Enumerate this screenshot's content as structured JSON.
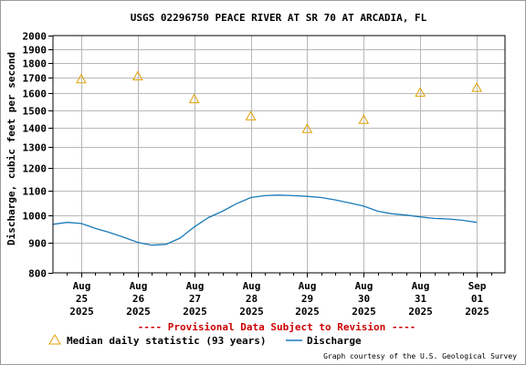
{
  "chart_data": {
    "type": "line",
    "title": "USGS 02296750 PEACE RIVER AT SR 70 AT ARCADIA, FL",
    "ylabel": "Discharge, cubic feet per second",
    "xlabel": "",
    "y_scale": "log",
    "ylim": [
      800,
      2000
    ],
    "y_ticks": [
      800,
      900,
      1000,
      1100,
      1200,
      1300,
      1400,
      1500,
      1600,
      1700,
      1800,
      1900,
      2000
    ],
    "x_range": [
      "2025-08-24T12:00",
      "2025-09-01T12:00"
    ],
    "x_ticks": [
      {
        "month": "Aug",
        "day": "25",
        "year": "2025",
        "date": "2025-08-25"
      },
      {
        "month": "Aug",
        "day": "26",
        "year": "2025",
        "date": "2025-08-26"
      },
      {
        "month": "Aug",
        "day": "27",
        "year": "2025",
        "date": "2025-08-27"
      },
      {
        "month": "Aug",
        "day": "28",
        "year": "2025",
        "date": "2025-08-28"
      },
      {
        "month": "Aug",
        "day": "29",
        "year": "2025",
        "date": "2025-08-29"
      },
      {
        "month": "Aug",
        "day": "30",
        "year": "2025",
        "date": "2025-08-30"
      },
      {
        "month": "Aug",
        "day": "31",
        "year": "2025",
        "date": "2025-08-31"
      },
      {
        "month": "Sep",
        "day": "01",
        "year": "2025",
        "date": "2025-09-01"
      }
    ],
    "grid": true,
    "provisional_note": "---- Provisional Data Subject to Revision ----",
    "series": [
      {
        "name": "Median daily statistic (93 years)",
        "type": "scatter",
        "marker": "triangle",
        "color": "#e0a000",
        "points": [
          {
            "x": "2025-08-25",
            "y": 1690
          },
          {
            "x": "2025-08-26",
            "y": 1710
          },
          {
            "x": "2025-08-27",
            "y": 1565
          },
          {
            "x": "2025-08-28",
            "y": 1465
          },
          {
            "x": "2025-08-29",
            "y": 1395
          },
          {
            "x": "2025-08-30",
            "y": 1445
          },
          {
            "x": "2025-08-31",
            "y": 1605
          },
          {
            "x": "2025-09-01",
            "y": 1635
          }
        ]
      },
      {
        "name": "Discharge",
        "type": "line",
        "color": "#1a7ab8",
        "points": [
          {
            "x": "2025-08-24T12:00",
            "y": 965
          },
          {
            "x": "2025-08-24T18:00",
            "y": 972
          },
          {
            "x": "2025-08-25T00:00",
            "y": 968
          },
          {
            "x": "2025-08-25T06:00",
            "y": 950
          },
          {
            "x": "2025-08-25T12:00",
            "y": 935
          },
          {
            "x": "2025-08-25T18:00",
            "y": 918
          },
          {
            "x": "2025-08-26T00:00",
            "y": 900
          },
          {
            "x": "2025-08-26T06:00",
            "y": 890
          },
          {
            "x": "2025-08-26T12:00",
            "y": 893
          },
          {
            "x": "2025-08-26T18:00",
            "y": 915
          },
          {
            "x": "2025-08-27T00:00",
            "y": 955
          },
          {
            "x": "2025-08-27T06:00",
            "y": 990
          },
          {
            "x": "2025-08-27T12:00",
            "y": 1015
          },
          {
            "x": "2025-08-27T18:00",
            "y": 1045
          },
          {
            "x": "2025-08-28T00:00",
            "y": 1070
          },
          {
            "x": "2025-08-28T06:00",
            "y": 1078
          },
          {
            "x": "2025-08-28T12:00",
            "y": 1080
          },
          {
            "x": "2025-08-28T18:00",
            "y": 1078
          },
          {
            "x": "2025-08-29T00:00",
            "y": 1075
          },
          {
            "x": "2025-08-29T06:00",
            "y": 1070
          },
          {
            "x": "2025-08-29T12:00",
            "y": 1060
          },
          {
            "x": "2025-08-29T18:00",
            "y": 1048
          },
          {
            "x": "2025-08-30T00:00",
            "y": 1035
          },
          {
            "x": "2025-08-30T06:00",
            "y": 1015
          },
          {
            "x": "2025-08-30T12:00",
            "y": 1005
          },
          {
            "x": "2025-08-30T18:00",
            "y": 1000
          },
          {
            "x": "2025-08-31T00:00",
            "y": 993
          },
          {
            "x": "2025-08-31T06:00",
            "y": 987
          },
          {
            "x": "2025-08-31T12:00",
            "y": 985
          },
          {
            "x": "2025-08-31T18:00",
            "y": 980
          },
          {
            "x": "2025-09-01T00:00",
            "y": 972
          }
        ]
      }
    ]
  },
  "credit": "Graph courtesy of the U.S. Geological Survey",
  "colors": {
    "frame": "#000000",
    "grid": "#b8b8b8",
    "note": "#cc0000",
    "text": "#000000"
  }
}
